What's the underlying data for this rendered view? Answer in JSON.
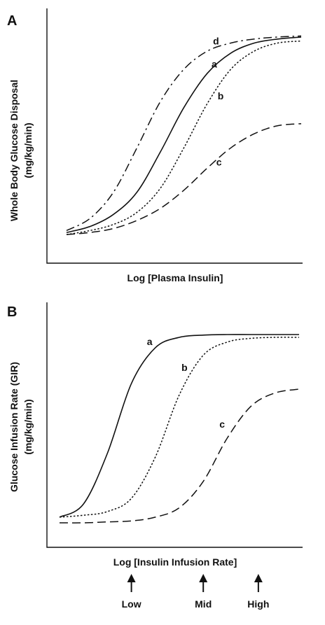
{
  "chart_data": [
    {
      "panel": "A",
      "type": "line",
      "title": "",
      "xlabel": "Log [Plasma Insulin]",
      "ylabel_line1": "Whole Body Glucose Disposal",
      "ylabel_line2": "(mg/kg/min)",
      "x_scale": "log",
      "ylim": [
        0,
        1
      ],
      "series": [
        {
          "name": "a",
          "style": "solid",
          "x": [
            0.0,
            0.1,
            0.2,
            0.3,
            0.4,
            0.5,
            0.6,
            0.7,
            0.8,
            0.9,
            1.0
          ],
          "y": [
            0.02,
            0.05,
            0.11,
            0.22,
            0.42,
            0.64,
            0.81,
            0.91,
            0.96,
            0.98,
            0.99
          ]
        },
        {
          "name": "b",
          "style": "dotted",
          "x": [
            0.0,
            0.1,
            0.2,
            0.3,
            0.4,
            0.5,
            0.6,
            0.7,
            0.8,
            0.9,
            1.0
          ],
          "y": [
            0.01,
            0.03,
            0.06,
            0.12,
            0.24,
            0.44,
            0.66,
            0.83,
            0.92,
            0.96,
            0.97
          ]
        },
        {
          "name": "c",
          "style": "dashed",
          "x": [
            0.0,
            0.1,
            0.2,
            0.3,
            0.4,
            0.5,
            0.6,
            0.7,
            0.8,
            0.9,
            1.0
          ],
          "y": [
            0.01,
            0.02,
            0.04,
            0.08,
            0.14,
            0.23,
            0.34,
            0.44,
            0.51,
            0.55,
            0.56
          ]
        },
        {
          "name": "d",
          "style": "dash-dot",
          "x": [
            0.0,
            0.1,
            0.2,
            0.3,
            0.4,
            0.5,
            0.6,
            0.7,
            0.8,
            0.9,
            1.0
          ],
          "y": [
            0.03,
            0.09,
            0.22,
            0.44,
            0.67,
            0.83,
            0.92,
            0.96,
            0.98,
            0.99,
            0.995
          ]
        }
      ]
    },
    {
      "panel": "B",
      "type": "line",
      "title": "",
      "xlabel": "Log [Insulin Infusion Rate]",
      "ylabel_line1": "Glucose Infusion Rate (GIR)",
      "ylabel_line2": "(mg/kg/min)",
      "x_scale": "log",
      "ylim": [
        0,
        1
      ],
      "series": [
        {
          "name": "a",
          "style": "solid",
          "x": [
            0.0,
            0.1,
            0.2,
            0.3,
            0.4,
            0.5,
            0.6,
            0.7,
            0.8,
            0.9,
            1.0
          ],
          "y": [
            0.03,
            0.1,
            0.37,
            0.74,
            0.93,
            0.985,
            0.997,
            1.0,
            1.0,
            1.0,
            1.0
          ]
        },
        {
          "name": "b",
          "style": "dotted",
          "x": [
            0.0,
            0.1,
            0.2,
            0.3,
            0.4,
            0.5,
            0.6,
            0.7,
            0.8,
            0.9,
            1.0
          ],
          "y": [
            0.03,
            0.04,
            0.06,
            0.13,
            0.35,
            0.68,
            0.89,
            0.96,
            0.98,
            0.985,
            0.985
          ]
        },
        {
          "name": "c",
          "style": "dashed",
          "x": [
            0.0,
            0.1,
            0.2,
            0.3,
            0.4,
            0.5,
            0.6,
            0.7,
            0.8,
            0.9,
            1.0
          ],
          "y": [
            0.0,
            0.0,
            0.005,
            0.01,
            0.03,
            0.08,
            0.22,
            0.45,
            0.62,
            0.69,
            0.71
          ]
        }
      ],
      "arrows": [
        {
          "label": "Low",
          "x": 0.3
        },
        {
          "label": "Mid",
          "x": 0.6
        },
        {
          "label": "High",
          "x": 0.83
        }
      ]
    }
  ]
}
